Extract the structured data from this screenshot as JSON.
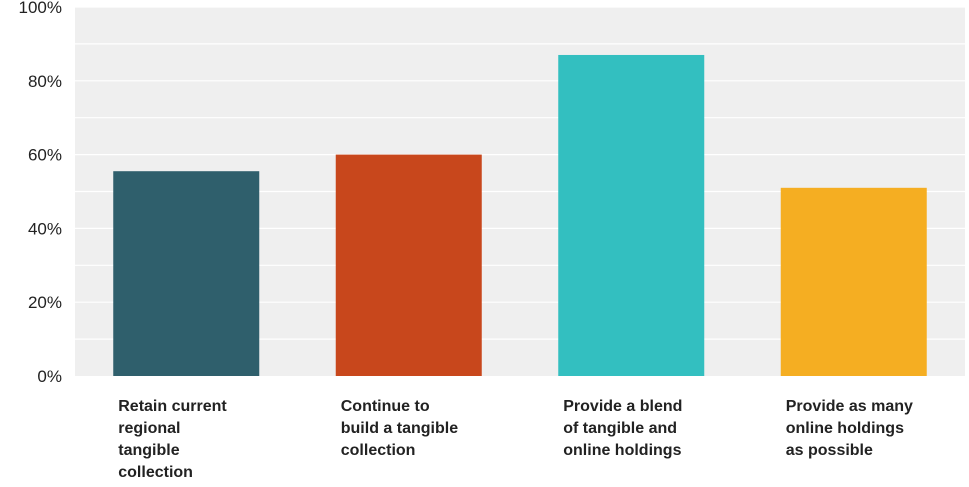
{
  "chart_data": {
    "type": "bar",
    "title": "",
    "xlabel": "",
    "ylabel": "",
    "ylim": [
      0,
      100
    ],
    "y_ticks": [
      "0%",
      "20%",
      "40%",
      "60%",
      "80%",
      "100%"
    ],
    "grid": true,
    "categories": [
      [
        "Retain current",
        "regional",
        "tangible",
        "collection"
      ],
      [
        "Continue to",
        "build a tangible",
        "collection"
      ],
      [
        "Provide a blend",
        "of tangible and",
        "online holdings"
      ],
      [
        "Provide as many",
        "online holdings",
        "as possible"
      ]
    ],
    "values": [
      55.5,
      60,
      87,
      51
    ],
    "colors": [
      "#2f5f6c",
      "#c8471c",
      "#33bfc0",
      "#f5ae22"
    ],
    "background_color": "#efefef",
    "gridline_color": "#ffffff"
  }
}
